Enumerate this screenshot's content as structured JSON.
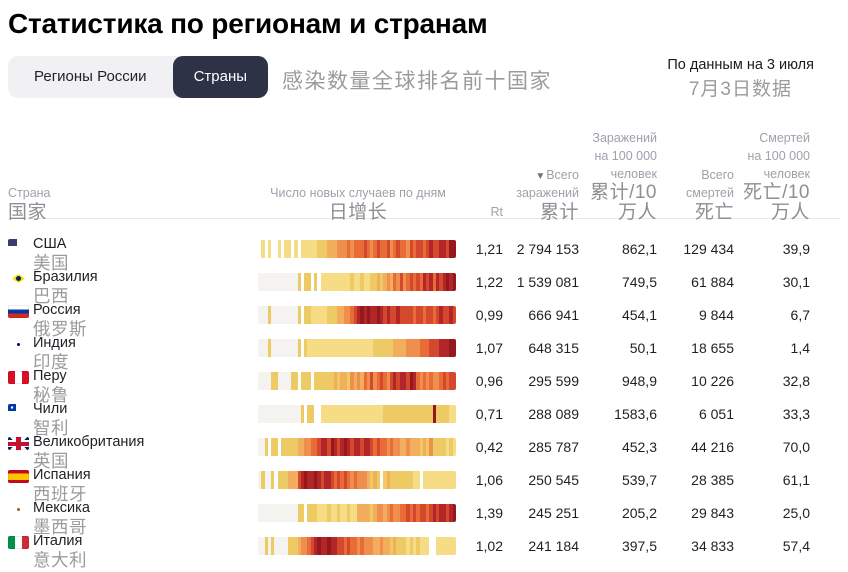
{
  "header": {
    "title": "Статистика по регионам и странам",
    "annotation_cn": "感染数量全球排名前十国家",
    "as_of_ru": "По данным на 3 июля",
    "as_of_cn": "7月3日数据"
  },
  "tabs": [
    {
      "label": "Регионы России",
      "active": false
    },
    {
      "label": "Страны",
      "active": true
    }
  ],
  "table": {
    "sort_icon": "▼",
    "columns": [
      {
        "ru": "Страна",
        "cn": "国家"
      },
      {
        "ru": "Число новых случаев по дням",
        "cn": "日增长"
      },
      {
        "ru": "Rt",
        "cn": ""
      },
      {
        "ru1": "Всего",
        "ru2": "заражений",
        "cn": "累计",
        "sorted": "desc"
      },
      {
        "ru": "Заражений\nна 100 000\nчеловек",
        "cn": "累计/10万人"
      },
      {
        "ru": "Всего\nсмертей",
        "cn": "死亡"
      },
      {
        "ru": "Смертей\nна 100 000\nчеловек",
        "cn": "死亡/10万人"
      }
    ],
    "rows": [
      {
        "flag": "us",
        "name_ru": "США",
        "name_cn": "美国",
        "rt": "1,21",
        "infections": "2 794 153",
        "infections_per_100k": "862,1",
        "deaths": "129 434",
        "deaths_per_100k": "39,9"
      },
      {
        "flag": "br",
        "name_ru": "Бразилия",
        "name_cn": "巴西",
        "rt": "1,22",
        "infections": "1 539 081",
        "infections_per_100k": "749,5",
        "deaths": "61 884",
        "deaths_per_100k": "30,1"
      },
      {
        "flag": "ru",
        "name_ru": "Россия",
        "name_cn": "俄罗斯",
        "rt": "0,99",
        "infections": "666 941",
        "infections_per_100k": "454,1",
        "deaths": "9 844",
        "deaths_per_100k": "6,7"
      },
      {
        "flag": "in",
        "name_ru": "Индия",
        "name_cn": "印度",
        "rt": "1,07",
        "infections": "648 315",
        "infections_per_100k": "50,1",
        "deaths": "18 655",
        "deaths_per_100k": "1,4"
      },
      {
        "flag": "pe",
        "name_ru": "Перу",
        "name_cn": "秘鲁",
        "rt": "0,96",
        "infections": "295 599",
        "infections_per_100k": "948,9",
        "deaths": "10 226",
        "deaths_per_100k": "32,8"
      },
      {
        "flag": "cl",
        "name_ru": "Чили",
        "name_cn": "智利",
        "rt": "0,71",
        "infections": "288 089",
        "infections_per_100k": "1583,6",
        "deaths": "6 051",
        "deaths_per_100k": "33,3"
      },
      {
        "flag": "gb",
        "name_ru": "Великобритания",
        "name_cn": "英国",
        "rt": "0,42",
        "infections": "285 787",
        "infections_per_100k": "452,3",
        "deaths": "44 216",
        "deaths_per_100k": "70,0"
      },
      {
        "flag": "es",
        "name_ru": "Испания",
        "name_cn": "西班牙",
        "rt": "1,06",
        "infections": "250 545",
        "infections_per_100k": "539,7",
        "deaths": "28 385",
        "deaths_per_100k": "61,1"
      },
      {
        "flag": "mx",
        "name_ru": "Мексика",
        "name_cn": "墨西哥",
        "rt": "1,39",
        "infections": "245 251",
        "infections_per_100k": "205,2",
        "deaths": "29 843",
        "deaths_per_100k": "25,0"
      },
      {
        "flag": "it",
        "name_ru": "Италия",
        "name_cn": "意大利",
        "rt": "1,02",
        "infections": "241 184",
        "infections_per_100k": "397,5",
        "deaths": "34 833",
        "deaths_per_100k": "57,4"
      }
    ]
  },
  "chart_data": {
    "type": "heatmap",
    "title": "Число новых случаев по дням / 日增长",
    "description": "One horizontal strip per country; each cell is one day (chronological left to right, ~Feb – Jul 3). Intensity scale: -1 = gap/white, 0 = no cases (grey), 1–3 pale-to-strong yellow (low), 4–6 orange (medium), 7–9 red to dark red (peak daily new cases).",
    "palette": {
      "-1": "#ffffff",
      "0": "#f4f3ef",
      "1": "#faedb6",
      "2": "#f5dc85",
      "3": "#edca63",
      "4": "#f2ae5c",
      "5": "#ef8f4e",
      "6": "#e86c38",
      "7": "#d4482d",
      "8": "#b2262a",
      "9": "#94191e"
    },
    "series": [
      {
        "name": "США",
        "values": [
          -1,
          2,
          -1,
          2,
          -1,
          -1,
          2,
          -1,
          2,
          2,
          -1,
          2,
          -1,
          2,
          2,
          2,
          2,
          2,
          3,
          3,
          3,
          4,
          4,
          4,
          5,
          5,
          5,
          6,
          5,
          6,
          6,
          6,
          7,
          6,
          5,
          6,
          7,
          6,
          6,
          7,
          5,
          6,
          7,
          6,
          6,
          5,
          7,
          6,
          7,
          7,
          6,
          7,
          8,
          7,
          7,
          8,
          8,
          7,
          9,
          9
        ]
      },
      {
        "name": "Бразилия",
        "values": [
          0,
          0,
          0,
          0,
          0,
          0,
          0,
          0,
          0,
          0,
          0,
          0,
          3,
          -1,
          3,
          3,
          -1,
          3,
          -1,
          2,
          2,
          2,
          2,
          2,
          2,
          2,
          2,
          2,
          3,
          2,
          2,
          3,
          2,
          2,
          3,
          3,
          4,
          3,
          4,
          5,
          4,
          6,
          5,
          7,
          5,
          6,
          7,
          6,
          7,
          6,
          8,
          7,
          8,
          6,
          8,
          7,
          8,
          9,
          8,
          9
        ]
      },
      {
        "name": "Россия",
        "values": [
          0,
          0,
          0,
          3,
          0,
          0,
          0,
          0,
          0,
          0,
          0,
          0,
          3,
          -1,
          3,
          3,
          2,
          2,
          2,
          2,
          2,
          3,
          3,
          3,
          4,
          4,
          5,
          5,
          6,
          7,
          8,
          9,
          8,
          9,
          8,
          8,
          9,
          8,
          7,
          8,
          7,
          7,
          8,
          7,
          7,
          7,
          7,
          6,
          7,
          7,
          6,
          7,
          7,
          6,
          7,
          8,
          7,
          7,
          8,
          7
        ]
      },
      {
        "name": "Индия",
        "values": [
          0,
          0,
          0,
          3,
          0,
          0,
          0,
          0,
          0,
          0,
          0,
          0,
          3,
          -1,
          3,
          2,
          2,
          2,
          2,
          2,
          2,
          2,
          2,
          2,
          2,
          2,
          2,
          2,
          2,
          2,
          2,
          2,
          2,
          2,
          2,
          3,
          3,
          3,
          3,
          3,
          3,
          4,
          4,
          4,
          4,
          5,
          5,
          5,
          5,
          6,
          6,
          6,
          7,
          7,
          7,
          8,
          8,
          8,
          9,
          9
        ]
      },
      {
        "name": "Перу",
        "values": [
          0,
          0,
          0,
          0,
          3,
          3,
          0,
          0,
          0,
          0,
          3,
          3,
          -1,
          3,
          3,
          3,
          -1,
          3,
          3,
          3,
          3,
          3,
          3,
          4,
          3,
          4,
          4,
          3,
          5,
          4,
          5,
          4,
          6,
          5,
          7,
          5,
          6,
          7,
          6,
          5,
          7,
          8,
          7,
          8,
          8,
          7,
          9,
          8,
          6,
          5,
          6,
          5,
          6,
          5,
          5,
          6,
          7,
          6,
          7,
          7
        ]
      },
      {
        "name": "Чили",
        "values": [
          0,
          0,
          0,
          0,
          0,
          0,
          0,
          0,
          0,
          0,
          0,
          0,
          0,
          3,
          -1,
          3,
          3,
          -1,
          -1,
          2,
          2,
          2,
          2,
          2,
          2,
          2,
          2,
          2,
          2,
          2,
          2,
          2,
          2,
          2,
          2,
          2,
          2,
          2,
          3,
          3,
          3,
          3,
          3,
          3,
          3,
          3,
          3,
          3,
          3,
          3,
          3,
          3,
          3,
          9,
          3,
          3,
          3,
          3,
          2,
          2
        ]
      },
      {
        "name": "Великобритания",
        "values": [
          0,
          0,
          3,
          -1,
          3,
          3,
          -1,
          3,
          3,
          3,
          3,
          3,
          4,
          4,
          5,
          5,
          6,
          6,
          7,
          8,
          8,
          7,
          9,
          8,
          7,
          8,
          9,
          8,
          7,
          8,
          8,
          7,
          8,
          8,
          7,
          6,
          7,
          6,
          6,
          5,
          6,
          5,
          5,
          4,
          4,
          5,
          4,
          4,
          4,
          3,
          4,
          3,
          5,
          3,
          3,
          3,
          3,
          2,
          3,
          2
        ]
      },
      {
        "name": "Испания",
        "values": [
          0,
          3,
          0,
          0,
          3,
          -1,
          3,
          3,
          3,
          4,
          4,
          4,
          7,
          8,
          9,
          8,
          8,
          9,
          8,
          7,
          8,
          8,
          7,
          6,
          7,
          6,
          7,
          6,
          5,
          6,
          5,
          5,
          5,
          4,
          3,
          4,
          3,
          -1,
          3,
          4,
          3,
          3,
          3,
          3,
          3,
          3,
          3,
          2,
          2,
          -1,
          2,
          2,
          2,
          2,
          2,
          2,
          2,
          2,
          2,
          2
        ]
      },
      {
        "name": "Мексика",
        "values": [
          0,
          0,
          0,
          0,
          0,
          0,
          0,
          0,
          0,
          0,
          0,
          0,
          3,
          3,
          -1,
          3,
          3,
          3,
          2,
          2,
          2,
          3,
          2,
          2,
          3,
          2,
          2,
          3,
          2,
          2,
          4,
          4,
          4,
          4,
          3,
          4,
          5,
          5,
          4,
          5,
          6,
          5,
          5,
          6,
          6,
          7,
          6,
          7,
          6,
          7,
          7,
          6,
          7,
          8,
          7,
          8,
          8,
          7,
          8,
          9
        ]
      },
      {
        "name": "Италия",
        "values": [
          0,
          0,
          3,
          0,
          3,
          0,
          0,
          0,
          0,
          3,
          3,
          3,
          4,
          5,
          5,
          6,
          7,
          8,
          9,
          8,
          8,
          9,
          8,
          8,
          7,
          7,
          6,
          7,
          6,
          6,
          5,
          6,
          5,
          5,
          5,
          4,
          4,
          5,
          4,
          4,
          3,
          4,
          3,
          3,
          3,
          2,
          3,
          2,
          3,
          2,
          2,
          2,
          -1,
          -1,
          2,
          2,
          2,
          2,
          2,
          2
        ]
      }
    ]
  }
}
